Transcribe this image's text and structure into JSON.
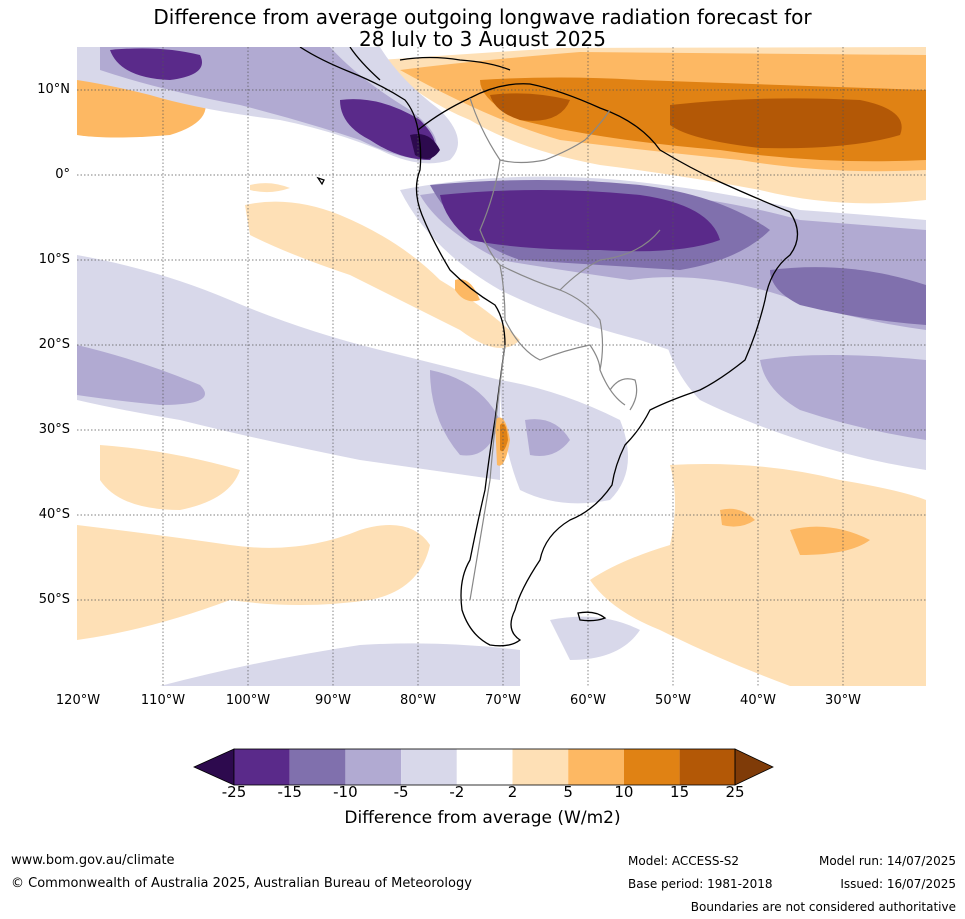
{
  "title": {
    "line1": "Difference from average outgoing longwave radiation forecast for",
    "line2": "28 July to 3 August 2025"
  },
  "map": {
    "lat_labels": [
      "10°N",
      "0°",
      "10°S",
      "20°S",
      "30°S",
      "40°S",
      "50°S"
    ],
    "lon_labels": [
      "120°W",
      "110°W",
      "100°W",
      "90°W",
      "80°W",
      "70°W",
      "60°W",
      "50°W",
      "40°W",
      "30°W"
    ]
  },
  "colorbar": {
    "ticks": [
      "-25",
      "-15",
      "-10",
      "-5",
      "-2",
      "2",
      "5",
      "10",
      "15",
      "25"
    ],
    "label": "Difference from average (W/m2)",
    "colors": [
      "#2d0a4e",
      "#5a2a8a",
      "#8070ad",
      "#b1aad2",
      "#d8d8ea",
      "#ffffff",
      "#fee0b6",
      "#fdb863",
      "#e08214",
      "#b35806",
      "#7f3b08"
    ]
  },
  "footer": {
    "website": "www.bom.gov.au/climate",
    "copyright": "© Commonwealth of Australia 2025, Australian Bureau of Meteorology",
    "model": "Model: ACCESS-S2",
    "base_period": "Base period: 1981-2018",
    "model_run": "Model run: 14/07/2025",
    "issued": "Issued: 16/07/2025",
    "disclaimer": "Boundaries are not considered authoritative"
  }
}
